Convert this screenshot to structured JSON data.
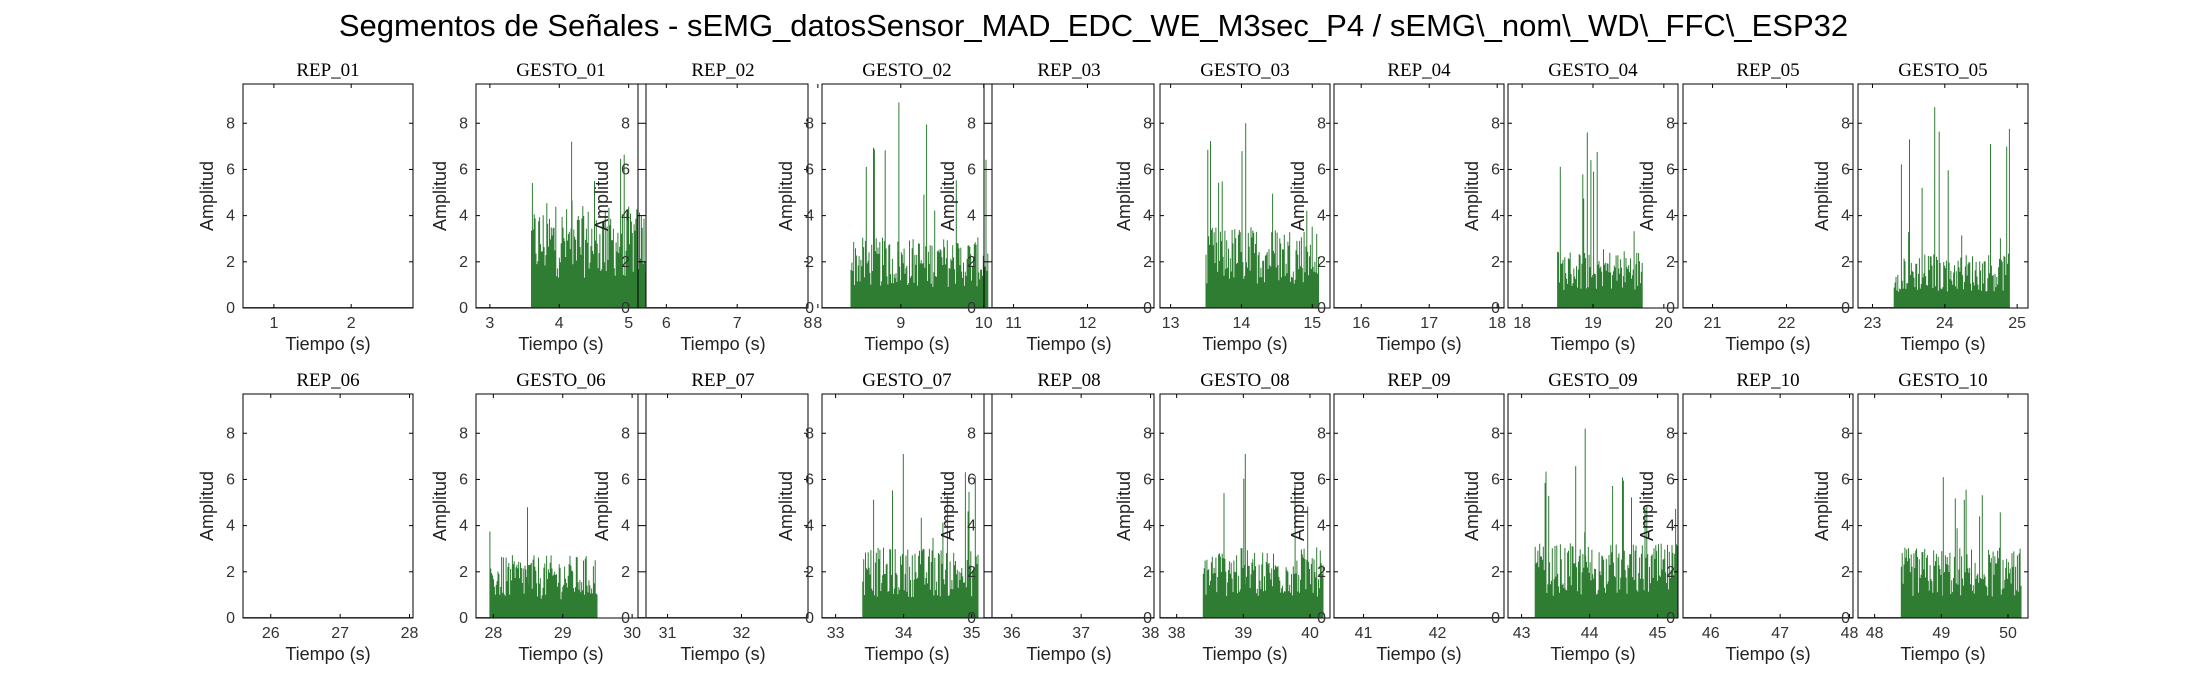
{
  "figure_title": "Segmentos de Señales - sEMG_datosSensor_MAD_EDC_WE_M3sec_P4 / sEMG\\_nom\\_WD\\_FFC\\_ESP32",
  "colors": {
    "signal": "#2e7d32",
    "axes": "#000000",
    "background": "#ffffff"
  },
  "chart_data": [
    {
      "type": "bar",
      "title": "REP_01",
      "xlabel": "Tiempo (s)",
      "ylabel": "Amplitud",
      "xlim": [
        0.6,
        2.8
      ],
      "ylim": [
        0,
        9.7
      ],
      "xticks": [
        1,
        2
      ],
      "yticks": [
        0,
        2,
        4,
        6,
        8
      ],
      "signal": {
        "start": 0.6,
        "end": 2.8,
        "peak": 0.05,
        "mean": 0.02
      }
    },
    {
      "type": "bar",
      "title": "GESTO_01",
      "xlabel": "Tiempo (s)",
      "ylabel": "Amplitud",
      "xlim": [
        2.8,
        5.25
      ],
      "ylim": [
        0,
        9.7
      ],
      "xticks": [
        3,
        4,
        5
      ],
      "yticks": [
        0,
        2,
        4,
        6,
        8
      ],
      "signal": {
        "start": 3.6,
        "end": 5.25,
        "peak": 7.2,
        "mean": 2.6
      }
    },
    {
      "type": "bar",
      "title": "REP_02",
      "xlabel": "Tiempo (s)",
      "ylabel": "Amplitud",
      "xlim": [
        5.6,
        8.0
      ],
      "ylim": [
        0,
        9.7
      ],
      "xticks": [
        6,
        7,
        8
      ],
      "yticks": [
        0,
        2,
        4,
        6,
        8
      ],
      "signal": {
        "start": 5.6,
        "end": 8.0,
        "peak": 0.05,
        "mean": 0.02
      }
    },
    {
      "type": "bar",
      "title": "GESTO_02",
      "xlabel": "Tiempo (s)",
      "ylabel": "Amplitud",
      "xlim": [
        8.05,
        10.1
      ],
      "ylim": [
        0,
        9.7
      ],
      "xticks": [
        8,
        9,
        10
      ],
      "yticks": [
        0,
        2,
        4,
        6,
        8
      ],
      "signal": {
        "start": 8.4,
        "end": 10.05,
        "peak": 8.9,
        "mean": 1.8
      }
    },
    {
      "type": "bar",
      "title": "REP_03",
      "xlabel": "Tiempo (s)",
      "ylabel": "Amplitud",
      "xlim": [
        10.6,
        12.9
      ],
      "ylim": [
        0,
        9.7
      ],
      "xticks": [
        11,
        12
      ],
      "yticks": [
        0,
        2,
        4,
        6,
        8
      ],
      "signal": {
        "start": 10.6,
        "end": 12.9,
        "peak": 0.05,
        "mean": 0.02
      }
    },
    {
      "type": "bar",
      "title": "GESTO_03",
      "xlabel": "Tiempo (s)",
      "ylabel": "Amplitud",
      "xlim": [
        12.85,
        15.25
      ],
      "ylim": [
        0,
        9.7
      ],
      "xticks": [
        13,
        14,
        15
      ],
      "yticks": [
        0,
        2,
        4,
        6,
        8
      ],
      "signal": {
        "start": 13.5,
        "end": 15.1,
        "peak": 8.0,
        "mean": 2.1
      }
    },
    {
      "type": "bar",
      "title": "REP_04",
      "xlabel": "Tiempo (s)",
      "ylabel": "Amplitud",
      "xlim": [
        15.6,
        18.1
      ],
      "ylim": [
        0,
        9.7
      ],
      "xticks": [
        16,
        17,
        18
      ],
      "yticks": [
        0,
        2,
        4,
        6,
        8
      ],
      "signal": {
        "start": 15.6,
        "end": 18.1,
        "peak": 0.05,
        "mean": 0.02
      }
    },
    {
      "type": "bar",
      "title": "GESTO_04",
      "xlabel": "Tiempo (s)",
      "ylabel": "Amplitud",
      "xlim": [
        17.8,
        20.2
      ],
      "ylim": [
        0,
        9.7
      ],
      "xticks": [
        18,
        19,
        20
      ],
      "yticks": [
        0,
        2,
        4,
        6,
        8
      ],
      "signal": {
        "start": 18.5,
        "end": 19.7,
        "peak": 7.6,
        "mean": 1.5
      }
    },
    {
      "type": "bar",
      "title": "REP_05",
      "xlabel": "Tiempo (s)",
      "ylabel": "Amplitud",
      "xlim": [
        20.6,
        22.9
      ],
      "ylim": [
        0,
        9.7
      ],
      "xticks": [
        21,
        22
      ],
      "yticks": [
        0,
        2,
        4,
        6,
        8
      ],
      "signal": {
        "start": 20.6,
        "end": 22.9,
        "peak": 0.05,
        "mean": 0.02
      }
    },
    {
      "type": "bar",
      "title": "GESTO_05",
      "xlabel": "Tiempo (s)",
      "ylabel": "Amplitud",
      "xlim": [
        22.8,
        25.15
      ],
      "ylim": [
        0,
        9.7
      ],
      "xticks": [
        23,
        24,
        25
      ],
      "yticks": [
        0,
        2,
        4,
        6,
        8
      ],
      "signal": {
        "start": 23.3,
        "end": 24.9,
        "peak": 8.7,
        "mean": 1.4
      }
    },
    {
      "type": "bar",
      "title": "REP_06",
      "xlabel": "Tiempo (s)",
      "ylabel": "Amplitud",
      "xlim": [
        25.6,
        28.05
      ],
      "ylim": [
        0,
        9.7
      ],
      "xticks": [
        26,
        27,
        28
      ],
      "yticks": [
        0,
        2,
        4,
        6,
        8
      ],
      "signal": {
        "start": 25.6,
        "end": 28.05,
        "peak": 0.05,
        "mean": 0.02
      }
    },
    {
      "type": "bar",
      "title": "GESTO_06",
      "xlabel": "Tiempo (s)",
      "ylabel": "Amplitud",
      "xlim": [
        27.75,
        30.2
      ],
      "ylim": [
        0,
        9.7
      ],
      "xticks": [
        28,
        29,
        30
      ],
      "yticks": [
        0,
        2,
        4,
        6,
        8
      ],
      "signal": {
        "start": 27.95,
        "end": 29.5,
        "peak": 4.8,
        "mean": 1.6
      }
    },
    {
      "type": "bar",
      "title": "REP_07",
      "xlabel": "Tiempo (s)",
      "ylabel": "Amplitud",
      "xlim": [
        30.6,
        32.9
      ],
      "ylim": [
        0,
        9.7
      ],
      "xticks": [
        31,
        32
      ],
      "yticks": [
        0,
        2,
        4,
        6,
        8
      ],
      "signal": {
        "start": 30.6,
        "end": 32.9,
        "peak": 0.05,
        "mean": 0.02
      }
    },
    {
      "type": "bar",
      "title": "GESTO_07",
      "xlabel": "Tiempo (s)",
      "ylabel": "Amplitud",
      "xlim": [
        32.8,
        35.3
      ],
      "ylim": [
        0,
        9.7
      ],
      "xticks": [
        33,
        34,
        35
      ],
      "yticks": [
        0,
        2,
        4,
        6,
        8
      ],
      "signal": {
        "start": 33.4,
        "end": 35.1,
        "peak": 7.1,
        "mean": 1.8
      }
    },
    {
      "type": "bar",
      "title": "REP_08",
      "xlabel": "Tiempo (s)",
      "ylabel": "Amplitud",
      "xlim": [
        35.6,
        38.05
      ],
      "ylim": [
        0,
        9.7
      ],
      "xticks": [
        36,
        37,
        38
      ],
      "yticks": [
        0,
        2,
        4,
        6,
        8
      ],
      "signal": {
        "start": 35.6,
        "end": 38.05,
        "peak": 0.05,
        "mean": 0.02
      }
    },
    {
      "type": "bar",
      "title": "GESTO_08",
      "xlabel": "Tiempo (s)",
      "ylabel": "Amplitud",
      "xlim": [
        37.75,
        40.3
      ],
      "ylim": [
        0,
        9.7
      ],
      "xticks": [
        38,
        39,
        40
      ],
      "yticks": [
        0,
        2,
        4,
        6,
        8
      ],
      "signal": {
        "start": 38.4,
        "end": 40.2,
        "peak": 7.1,
        "mean": 1.8
      }
    },
    {
      "type": "bar",
      "title": "REP_09",
      "xlabel": "Tiempo (s)",
      "ylabel": "Amplitud",
      "xlim": [
        40.6,
        42.9
      ],
      "ylim": [
        0,
        9.7
      ],
      "xticks": [
        41,
        42
      ],
      "yticks": [
        0,
        2,
        4,
        6,
        8
      ],
      "signal": {
        "start": 40.6,
        "end": 42.9,
        "peak": 0.05,
        "mean": 0.02
      }
    },
    {
      "type": "bar",
      "title": "GESTO_09",
      "xlabel": "Tiempo (s)",
      "ylabel": "Amplitud",
      "xlim": [
        42.8,
        45.3
      ],
      "ylim": [
        0,
        9.7
      ],
      "xticks": [
        43,
        44,
        45
      ],
      "yticks": [
        0,
        2,
        4,
        6,
        8
      ],
      "signal": {
        "start": 43.2,
        "end": 45.3,
        "peak": 8.2,
        "mean": 1.9
      }
    },
    {
      "type": "bar",
      "title": "REP_10",
      "xlabel": "Tiempo (s)",
      "ylabel": "Amplitud",
      "xlim": [
        45.6,
        48.05
      ],
      "ylim": [
        0,
        9.7
      ],
      "xticks": [
        46,
        47,
        48
      ],
      "yticks": [
        0,
        2,
        4,
        6,
        8
      ],
      "signal": {
        "start": 45.6,
        "end": 48.05,
        "peak": 0.05,
        "mean": 0.02
      }
    },
    {
      "type": "bar",
      "title": "GESTO_10",
      "xlabel": "Tiempo (s)",
      "ylabel": "Amplitud",
      "xlim": [
        47.75,
        50.3
      ],
      "ylim": [
        0,
        9.7
      ],
      "xticks": [
        48,
        49,
        50
      ],
      "yticks": [
        0,
        2,
        4,
        6,
        8
      ],
      "signal": {
        "start": 48.4,
        "end": 50.2,
        "peak": 6.1,
        "mean": 1.8
      }
    }
  ]
}
